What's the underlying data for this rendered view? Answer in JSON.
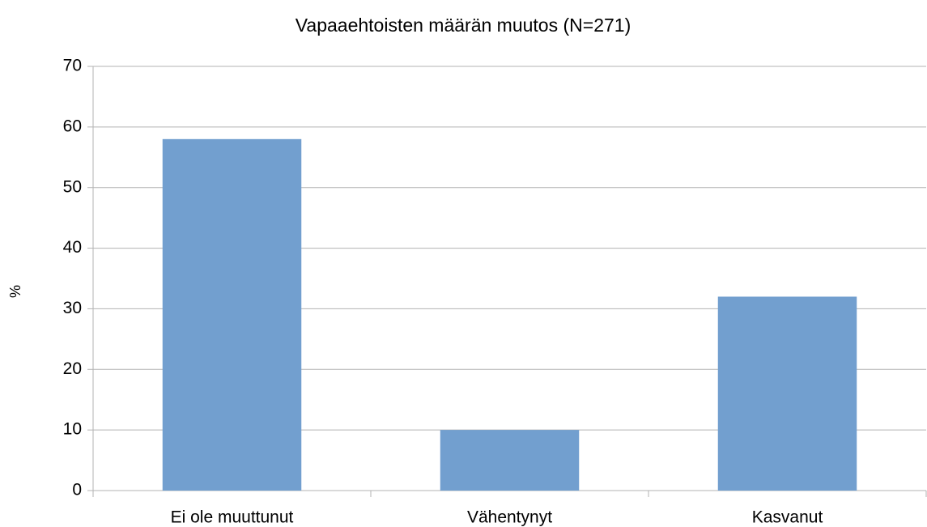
{
  "chart_data": {
    "type": "bar",
    "title": "Vapaaehtoisten määrän muutos (N=271)",
    "y_label": "%",
    "categories": [
      "Ei ole muuttunut",
      "Vähentynyt",
      "Kasvanut"
    ],
    "values": [
      58,
      10,
      32
    ],
    "color": "#729fcf",
    "ylim": [
      0,
      70
    ],
    "yticks": [
      0,
      10,
      20,
      30,
      40,
      50,
      60,
      70
    ],
    "grid": true
  }
}
